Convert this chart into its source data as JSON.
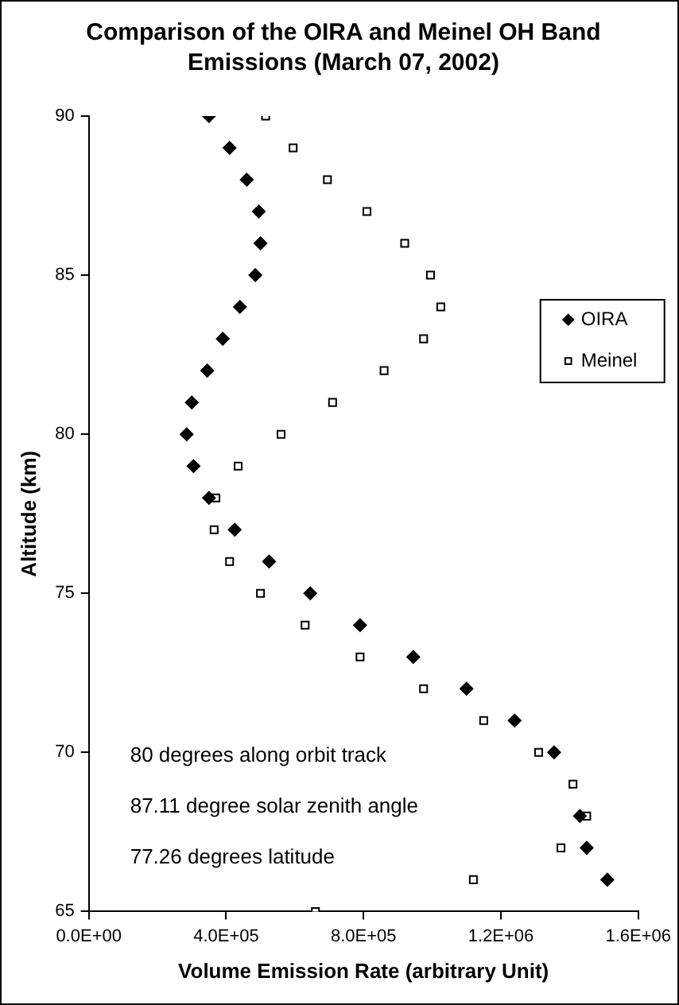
{
  "chart_data": {
    "type": "scatter",
    "title": "Comparison of the OIRA and Meinel OH Band Emissions (March 07, 2002)",
    "xlabel": "Volume Emission Rate (arbitrary Unit)",
    "ylabel": "Altitude (km)",
    "xlim": [
      0,
      1600000
    ],
    "xticks": [
      {
        "value": 0,
        "label": "0.0E+00"
      },
      {
        "value": 400000,
        "label": "4.0E+05"
      },
      {
        "value": 800000,
        "label": "8.0E+05"
      },
      {
        "value": 1200000,
        "label": "1.2E+06"
      },
      {
        "value": 1600000,
        "label": "1.6E+06"
      }
    ],
    "ylim": [
      65,
      90
    ],
    "yticks": [
      65,
      70,
      75,
      80,
      85,
      90
    ],
    "grid": false,
    "legend": "right",
    "annotations": [
      "80 degrees along orbit track",
      "87.11 degree solar zenith angle",
      "77.26 degrees latitude"
    ],
    "series": [
      {
        "name": "OIRA",
        "color": "#000000",
        "marker": "diamond",
        "x": [
          350000,
          410000,
          460000,
          495000,
          500000,
          485000,
          440000,
          390000,
          345000,
          300000,
          285000,
          305000,
          350000,
          425000,
          525000,
          645000,
          790000,
          945000,
          1100000,
          1240000,
          1355000,
          1430000,
          1450000,
          1510000
        ],
        "values": [
          90,
          89,
          88,
          87,
          86,
          85,
          84,
          83,
          82,
          81,
          80,
          79,
          78,
          77,
          76,
          75,
          74,
          73,
          72,
          71,
          70,
          68,
          67,
          66
        ]
      },
      {
        "name": "Meinel",
        "color": "#000000",
        "marker": "square",
        "x": [
          515000,
          595000,
          695000,
          810000,
          920000,
          995000,
          1025000,
          975000,
          860000,
          710000,
          560000,
          435000,
          370000,
          365000,
          410000,
          500000,
          630000,
          790000,
          975000,
          1150000,
          1310000,
          1410000,
          1450000,
          1375000,
          1120000,
          660000
        ],
        "values": [
          90,
          89,
          88,
          87,
          86,
          85,
          84,
          83,
          82,
          81,
          80,
          79,
          78,
          77,
          76,
          75,
          74,
          73,
          72,
          71,
          70,
          69,
          68,
          67,
          66,
          65
        ]
      }
    ]
  }
}
